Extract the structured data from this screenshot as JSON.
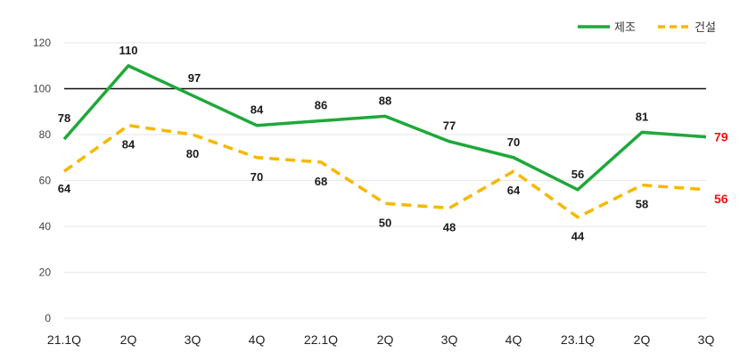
{
  "chart_data": {
    "type": "line",
    "categories": [
      "21.1Q",
      "2Q",
      "3Q",
      "4Q",
      "22.1Q",
      "2Q",
      "3Q",
      "4Q",
      "23.1Q",
      "2Q",
      "3Q"
    ],
    "series": [
      {
        "name": "제조",
        "color": "#1fa83a",
        "dash": "solid",
        "values": [
          78,
          110,
          97,
          84,
          86,
          88,
          77,
          70,
          56,
          81,
          79
        ]
      },
      {
        "name": "건설",
        "color": "#f5b800",
        "dash": "dashed",
        "values": [
          64,
          84,
          80,
          70,
          68,
          50,
          48,
          64,
          44,
          58,
          56
        ]
      }
    ],
    "ylim": [
      0,
      120
    ],
    "yticks": [
      0,
      20,
      40,
      60,
      80,
      100,
      120
    ],
    "reference_line": 100,
    "last_label_color": "#ee1111",
    "grid": true,
    "legend_position": "top-right"
  }
}
